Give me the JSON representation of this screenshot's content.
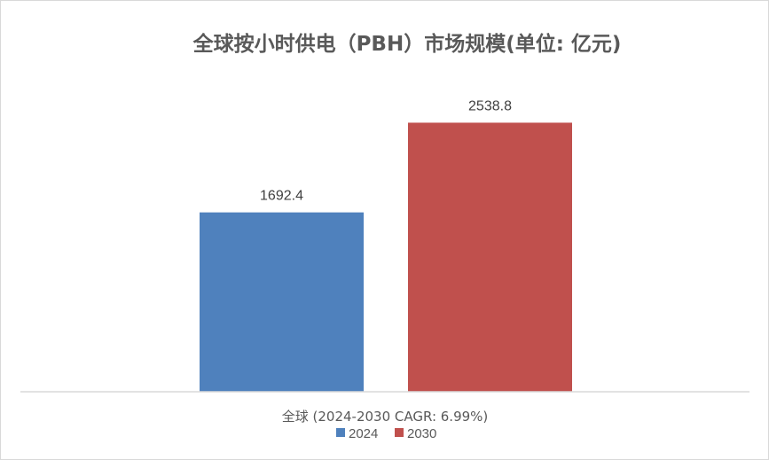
{
  "chart_data": {
    "type": "bar",
    "title": "全球按小时供电（PBH）市场规模(单位: 亿元)",
    "categories": [
      "全球 (2024-2030 CAGR: 6.99%)"
    ],
    "series": [
      {
        "name": "2024",
        "values": [
          1692.4
        ],
        "color": "#4f81bd"
      },
      {
        "name": "2030",
        "values": [
          2538.8
        ],
        "color": "#c0504d"
      }
    ],
    "data_labels": [
      "1692.4",
      "2538.8"
    ],
    "ylim": [
      0,
      2800
    ],
    "grid": false,
    "legend_position": "bottom"
  }
}
